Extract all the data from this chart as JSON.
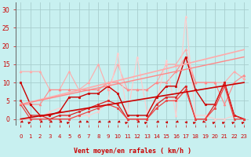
{
  "bg_color": "#c8f0f0",
  "grid_color": "#a8cece",
  "xlabel": "Vent moyen/en rafales ( km/h )",
  "xlabel_color": "#cc0000",
  "tick_color": "#cc0000",
  "ylim": [
    -1.5,
    32
  ],
  "xlim": [
    -0.5,
    23.5
  ],
  "yticks": [
    0,
    5,
    10,
    15,
    20,
    25,
    30
  ],
  "xticks": [
    0,
    1,
    2,
    3,
    4,
    5,
    6,
    7,
    8,
    9,
    10,
    11,
    12,
    13,
    14,
    15,
    16,
    17,
    18,
    19,
    20,
    21,
    22,
    23
  ],
  "lines": [
    {
      "x": [
        0,
        1,
        2,
        3,
        4,
        5,
        6,
        7,
        8,
        9,
        10,
        11,
        12,
        13,
        14,
        15,
        16,
        17,
        18,
        19,
        20,
        21,
        22,
        23
      ],
      "y": [
        13,
        13,
        13,
        8,
        8,
        13,
        8,
        10,
        15,
        8,
        15,
        8,
        8,
        8,
        10,
        15,
        15,
        19,
        10,
        10,
        10,
        10,
        13,
        11
      ],
      "color": "#ffaaaa",
      "lw": 0.8,
      "marker": "^",
      "ms": 2.0
    },
    {
      "x": [
        0,
        1,
        2,
        3,
        4,
        5,
        6,
        7,
        8,
        9,
        10,
        11,
        12,
        13,
        14,
        15,
        16,
        17,
        18,
        19,
        20,
        21,
        22,
        23
      ],
      "y": [
        4,
        4,
        4,
        8,
        8,
        8,
        8,
        8,
        8,
        10,
        10,
        8,
        8,
        8,
        10,
        10,
        13,
        17,
        10,
        10,
        10,
        4,
        10,
        12
      ],
      "color": "#ff8888",
      "lw": 0.8,
      "marker": "^",
      "ms": 2.0
    },
    {
      "x": [
        0,
        1,
        2,
        3,
        4,
        5,
        6,
        7,
        8,
        9,
        10,
        11,
        12,
        13,
        14,
        15,
        16,
        17,
        18,
        19,
        20,
        21,
        22,
        23
      ],
      "y": [
        0,
        0,
        0,
        2,
        3,
        0,
        1,
        1,
        2,
        5,
        18,
        1,
        17,
        2,
        5,
        16,
        1,
        28,
        1,
        1,
        0,
        0,
        1,
        0
      ],
      "color": "#ffcccc",
      "lw": 0.8,
      "marker": "^",
      "ms": 2.0
    },
    {
      "x": [
        0,
        1,
        2,
        3,
        4,
        5,
        6,
        7,
        8,
        9,
        10,
        11,
        12,
        13,
        14,
        15,
        16,
        17,
        18,
        19,
        20,
        21,
        22,
        23
      ],
      "y": [
        10,
        4,
        1,
        1,
        2,
        6,
        6,
        7,
        7,
        9,
        7,
        1,
        1,
        1,
        6,
        9,
        9,
        17,
        8,
        4,
        4,
        10,
        1,
        0
      ],
      "color": "#cc0000",
      "lw": 1.0,
      "marker": "s",
      "ms": 2.0
    },
    {
      "x": [
        0,
        1,
        2,
        3,
        4,
        5,
        6,
        7,
        8,
        9,
        10,
        11,
        12,
        13,
        14,
        15,
        16,
        17,
        18,
        19,
        20,
        21,
        22,
        23
      ],
      "y": [
        5,
        1,
        1,
        0,
        1,
        1,
        2,
        3,
        4,
        5,
        4,
        0,
        0,
        0,
        4,
        6,
        6,
        9,
        0,
        0,
        4,
        10,
        1,
        0
      ],
      "color": "#dd2222",
      "lw": 0.9,
      "marker": "s",
      "ms": 2.0
    },
    {
      "x": [
        0,
        1,
        2,
        3,
        4,
        5,
        6,
        7,
        8,
        9,
        10,
        11,
        12,
        13,
        14,
        15,
        16,
        17,
        18,
        19,
        20,
        21,
        22,
        23
      ],
      "y": [
        4,
        0,
        0,
        0,
        0,
        0,
        1,
        2,
        3,
        4,
        3,
        0,
        0,
        0,
        3,
        5,
        5,
        8,
        0,
        0,
        3,
        9,
        0,
        0
      ],
      "color": "#ee4444",
      "lw": 0.9,
      "marker": "s",
      "ms": 2.0
    },
    {
      "x": [
        0,
        23
      ],
      "y": [
        0,
        10
      ],
      "color": "#cc0000",
      "lw": 1.2,
      "marker": null,
      "ms": 0
    },
    {
      "x": [
        0,
        23
      ],
      "y": [
        4,
        19
      ],
      "color": "#ffaaaa",
      "lw": 1.2,
      "marker": null,
      "ms": 0
    },
    {
      "x": [
        0,
        23
      ],
      "y": [
        4,
        17
      ],
      "color": "#ff8888",
      "lw": 1.0,
      "marker": null,
      "ms": 0
    }
  ],
  "arrows": {
    "y": -0.9,
    "angles_deg": [
      225,
      45,
      225,
      225,
      225,
      45,
      225,
      135,
      225,
      225,
      225,
      45,
      225,
      45,
      225,
      270,
      225,
      270,
      45,
      135,
      45,
      45,
      45,
      45
    ],
    "color": "#cc0000",
    "size": 4
  }
}
